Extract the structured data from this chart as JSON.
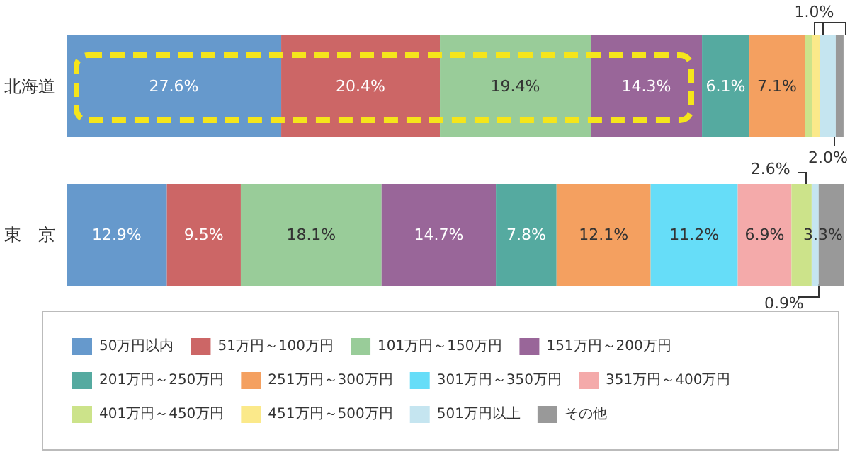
{
  "chart_data": {
    "type": "bar",
    "orientation": "horizontal",
    "stacked": true,
    "categories": [
      "北海道",
      "東　京"
    ],
    "legend": "bottom",
    "series": [
      {
        "name": "50万円以内",
        "color": "#6699cc",
        "values": [
          27.6,
          12.9
        ],
        "value_labels": [
          "27.6%",
          "12.9%"
        ]
      },
      {
        "name": "51万円～100万円",
        "color": "#cc6666",
        "values": [
          20.4,
          9.5
        ],
        "value_labels": [
          "20.4%",
          "9.5%"
        ]
      },
      {
        "name": "101万円～150万円",
        "color": "#99cc99",
        "values": [
          19.4,
          18.1
        ],
        "value_labels": [
          "19.4%",
          "18.1%"
        ]
      },
      {
        "name": "151万円～200万円",
        "color": "#996699",
        "values": [
          14.3,
          14.7
        ],
        "value_labels": [
          "14.3%",
          "14.7%"
        ]
      },
      {
        "name": "201万円～250万円",
        "color": "#55aaa0",
        "values": [
          6.1,
          7.8
        ],
        "value_labels": [
          "6.1%",
          "7.8%"
        ]
      },
      {
        "name": "251万円～300万円",
        "color": "#f4a060",
        "values": [
          7.1,
          12.1
        ],
        "value_labels": [
          "7.1%",
          "12.1%"
        ]
      },
      {
        "name": "301万円～350万円",
        "color": "#66ddf8",
        "values": [
          null,
          11.2
        ],
        "value_labels": [
          null,
          "11.2%"
        ]
      },
      {
        "name": "351万円～400万円",
        "color": "#f4aaaa",
        "values": [
          null,
          6.9
        ],
        "value_labels": [
          null,
          "6.9%"
        ]
      },
      {
        "name": "401万円～450万円",
        "color": "#cce38a",
        "values": [
          1.0,
          2.6
        ],
        "value_labels": [
          "1.0%",
          "2.6%"
        ]
      },
      {
        "name": "451万円～500万円",
        "color": "#fbe98a",
        "values": [
          1.0,
          null
        ],
        "value_labels": [
          null,
          null
        ]
      },
      {
        "name": "501万円以上",
        "color": "#c5e5f0",
        "values": [
          2.0,
          0.9
        ],
        "value_labels": [
          "2.0%",
          "0.9%"
        ]
      },
      {
        "name": "その他",
        "color": "#999999",
        "values": [
          1.0,
          3.3
        ],
        "value_labels": [
          null,
          "3.3%"
        ]
      }
    ]
  }
}
